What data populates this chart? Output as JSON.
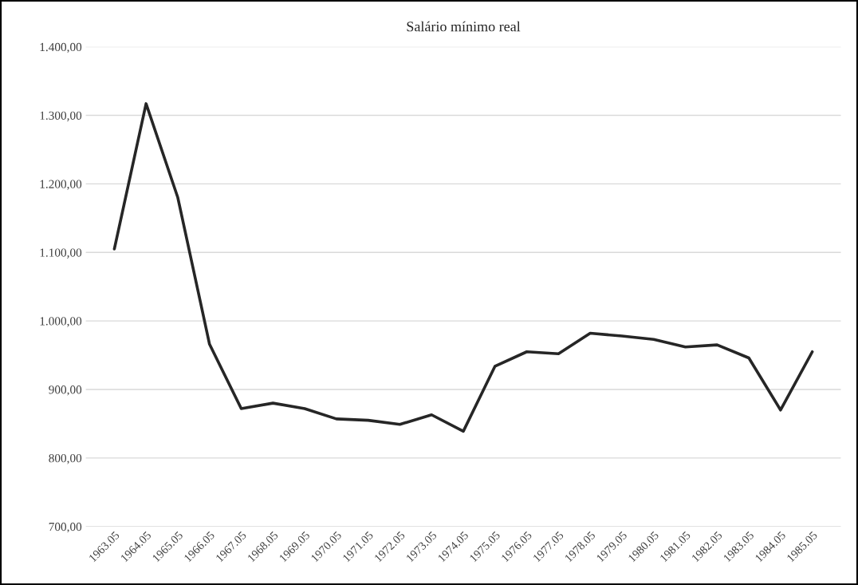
{
  "chart_data": {
    "type": "line",
    "title": "Salário mínimo real",
    "categories": [
      "1963.05",
      "1964.05",
      "1965.05",
      "1966.05",
      "1967.05",
      "1968.05",
      "1969.05",
      "1970.05",
      "1971.05",
      "1972.05",
      "1973.05",
      "1974.05",
      "1975.05",
      "1976.05",
      "1977.05",
      "1978.05",
      "1979.05",
      "1980.05",
      "1981.05",
      "1982.05",
      "1983.05",
      "1984.05",
      "1985.05"
    ],
    "series": [
      {
        "color": "#262626",
        "values": [
          1105,
          1317,
          1180,
          966,
          872,
          880,
          872,
          857,
          855,
          849,
          863,
          839,
          934,
          955,
          952,
          982,
          978,
          973,
          962,
          965,
          946,
          870,
          955
        ]
      }
    ],
    "ylim": [
      700,
      1400
    ],
    "yticks": [
      {
        "value": 700,
        "label": "700,00"
      },
      {
        "value": 800,
        "label": "800,00"
      },
      {
        "value": 900,
        "label": "900,00"
      },
      {
        "value": 1000,
        "label": "1.000,00"
      },
      {
        "value": 1100,
        "label": "1.100,00"
      },
      {
        "value": 1200,
        "label": "1.200,00"
      },
      {
        "value": 1300,
        "label": "1.300,00"
      },
      {
        "value": 1400,
        "label": "1.400,00"
      }
    ],
    "grid": "y",
    "marker": "none",
    "line_style": "solid"
  }
}
